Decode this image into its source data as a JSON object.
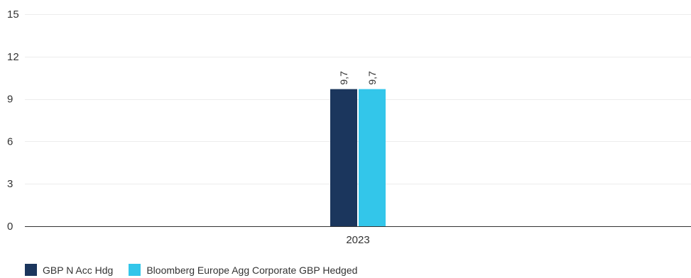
{
  "chart_data": {
    "type": "bar",
    "categories": [
      "2023"
    ],
    "series": [
      {
        "name": "GBP N Acc Hdg",
        "values": [
          9.7
        ],
        "labels": [
          "9,7"
        ],
        "color": "#1b365d"
      },
      {
        "name": "Bloomberg Europe Agg Corporate GBP Hedged",
        "values": [
          9.7
        ],
        "labels": [
          "9,7"
        ],
        "color": "#33c6ea"
      }
    ],
    "yticks": [
      "0",
      "3",
      "6",
      "9",
      "12",
      "15"
    ],
    "ylim": [
      0,
      15
    ],
    "grid": true,
    "legend_position": "bottom-left",
    "title": "",
    "xlabel": "",
    "ylabel": ""
  }
}
